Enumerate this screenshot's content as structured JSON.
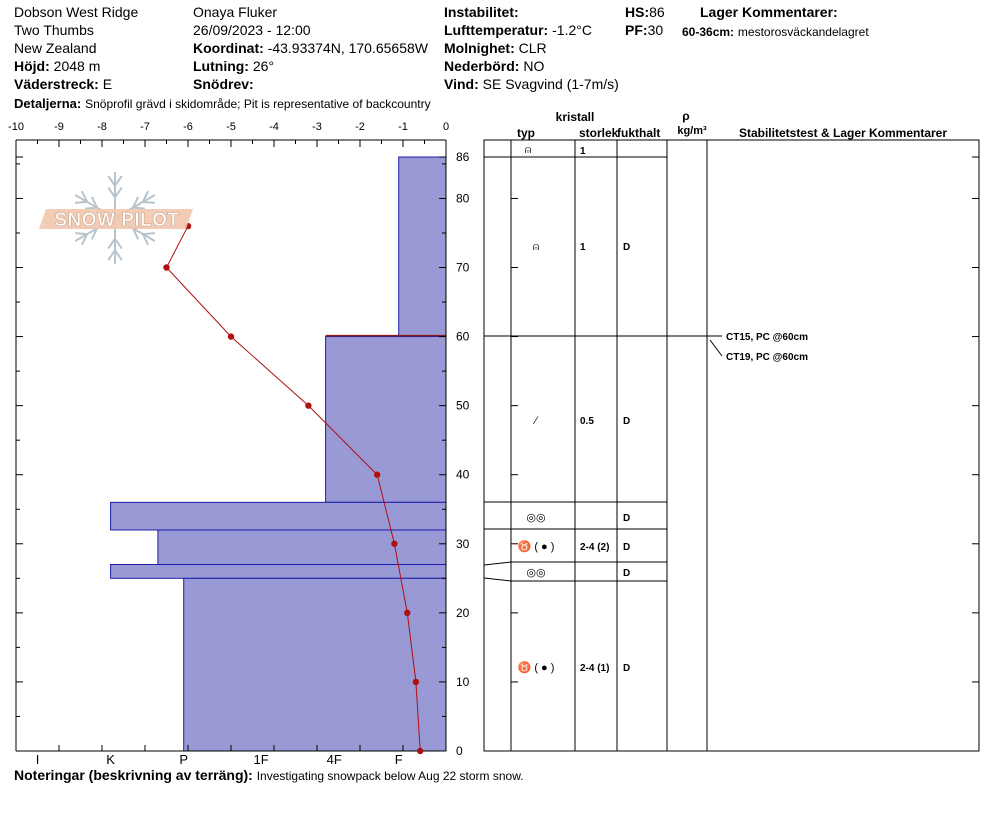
{
  "header": {
    "location": "Dobson West Ridge",
    "sublocation": "Two Thumbs",
    "region": "New Zealand",
    "elevation_label": "Höjd:",
    "elevation_value": "2048 m",
    "aspect_label": "Väderstreck:",
    "aspect_value": "E",
    "observer": "Onaya Fluker",
    "datetime": "26/09/2023 - 12:00",
    "coord_label": "Koordinat:",
    "coord_value": "-43.93374N, 170.65658W",
    "slope_label": "Lutning:",
    "slope_value": "26°",
    "wind_loading_label": "Snödrev:",
    "instability_label": "Instabilitet:",
    "air_temp_label": "Lufttemperatur:",
    "air_temp_value": "-1.2°C",
    "sky_label": "Molnighet:",
    "sky_value": "CLR",
    "precip_label": "Nederbörd:",
    "precip_value": "NO",
    "wind_label": "Vind:",
    "wind_value": "SE  Svagvind (1-7m/s)",
    "hs_label": "HS:",
    "hs_value": "86",
    "pf_label": "PF:",
    "pf_value": "30",
    "layer_comments_label": "Lager Kommentarer:",
    "layer_comment_range": "60-36cm:",
    "layer_comment_text": "mestorosväckandelagret",
    "details_label": "Detaljerna:",
    "details_text": "Snöprofil grävd i skidområde;  Pit is representative of backcountry"
  },
  "footer": {
    "notes_label": "Noteringar (beskrivning av terräng):",
    "notes_text": "Investigating snowpack below Aug 22 storm snow."
  },
  "logo": {
    "text": "SNOW PILOT",
    "icon": "snowflake-icon"
  },
  "table": {
    "headers": {
      "crystal": "kristall",
      "type": "typ",
      "size": "storlek",
      "moisture": "fukthalt",
      "density_symbol": "ρ",
      "density_unit": "kg/m³",
      "stability": "Stabilitetstest & Lager Kommentarer"
    },
    "tests": [
      "CT15, PC @60cm",
      "CT19, PC @60cm"
    ]
  },
  "chart_data": {
    "type": "bar",
    "description_free": true,
    "temp_axis": {
      "ticks": [
        -10,
        -9,
        -8,
        -7,
        -6,
        -5,
        -4,
        -3,
        -2,
        -1,
        0
      ],
      "range": [
        -10,
        0
      ]
    },
    "height_axis": {
      "ticks": [
        0,
        10,
        20,
        30,
        40,
        50,
        60,
        70,
        80,
        86
      ],
      "range": [
        0,
        86
      ]
    },
    "hardness_axis": {
      "labels": [
        "I",
        "K",
        "P",
        "1F",
        "4F",
        "F"
      ]
    },
    "temperature_profile": [
      {
        "height": 76,
        "temp": -6.0
      },
      {
        "height": 70,
        "temp": -6.5
      },
      {
        "height": 60,
        "temp": -5.0
      },
      {
        "height": 50,
        "temp": -3.2
      },
      {
        "height": 40,
        "temp": -1.6
      },
      {
        "height": 30,
        "temp": -1.2
      },
      {
        "height": 20,
        "temp": -0.9
      },
      {
        "height": 10,
        "temp": -0.7
      },
      {
        "height": 0,
        "temp": -0.6
      }
    ],
    "layers": [
      {
        "top": 86,
        "bottom": 60,
        "hardness_temp": -1.1,
        "type_symbol": "⍝",
        "size": "1",
        "moisture": "D"
      },
      {
        "top": 60,
        "bottom": 36,
        "hardness_temp": -2.8,
        "type_symbol": "⁄",
        "size": "0.5",
        "moisture": "D"
      },
      {
        "top": 36,
        "bottom": 32,
        "hardness_temp": -7.8,
        "type_symbol": "◎◎",
        "size": "",
        "moisture": "D"
      },
      {
        "top": 32,
        "bottom": 27,
        "hardness_temp": -6.7,
        "type_symbol": "♉ ( ● )",
        "size": "2-4 (2)",
        "moisture": "D"
      },
      {
        "top": 27,
        "bottom": 25,
        "hardness_temp": -7.8,
        "type_symbol": "◎◎",
        "size": "",
        "moisture": "D"
      },
      {
        "top": 25,
        "bottom": 0,
        "hardness_temp": -6.1,
        "type_symbol": "♉ ( ● )",
        "size": "2-4 (1)",
        "moisture": "D"
      }
    ],
    "top_row": {
      "type_symbol": "⍝",
      "size": "1"
    }
  }
}
